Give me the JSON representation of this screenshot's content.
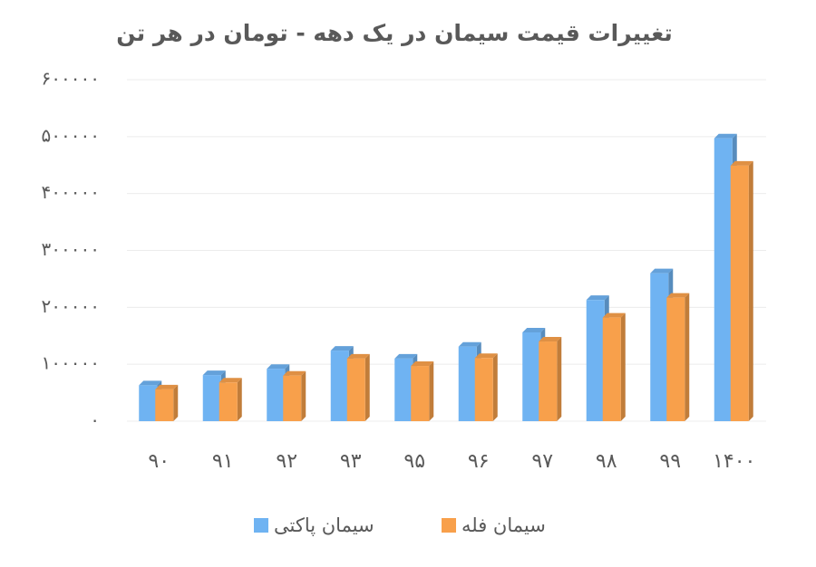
{
  "chart_data": {
    "type": "bar",
    "title": "تغییرات قیمت سیمان در یک دهه - تومان در هر تن",
    "categories": [
      "۹۰",
      "۹۱",
      "۹۲",
      "۹۳",
      "۹۵",
      "۹۶",
      "۹۷",
      "۹۸",
      "۹۹",
      "۱۴۰۰"
    ],
    "series": [
      {
        "name": "سیمان پاکتی",
        "color": "#6fb3f2",
        "values": [
          63000,
          81000,
          92000,
          124000,
          110000,
          131000,
          156000,
          213000,
          260000,
          497000
        ]
      },
      {
        "name": "سیمان فله",
        "color": "#f8a04b",
        "values": [
          56000,
          68000,
          80000,
          110000,
          97000,
          111000,
          140000,
          182000,
          217000,
          449000
        ]
      }
    ],
    "ylim": [
      0,
      600000
    ],
    "yticks": [
      {
        "value": 0,
        "label": "۰"
      },
      {
        "value": 100000,
        "label": "۱۰۰۰۰۰"
      },
      {
        "value": 200000,
        "label": "۲۰۰۰۰۰"
      },
      {
        "value": 300000,
        "label": "۳۰۰۰۰۰"
      },
      {
        "value": 400000,
        "label": "۴۰۰۰۰۰"
      },
      {
        "value": 500000,
        "label": "۵۰۰۰۰۰"
      },
      {
        "value": 600000,
        "label": "۶۰۰۰۰۰"
      }
    ],
    "grid": true
  }
}
